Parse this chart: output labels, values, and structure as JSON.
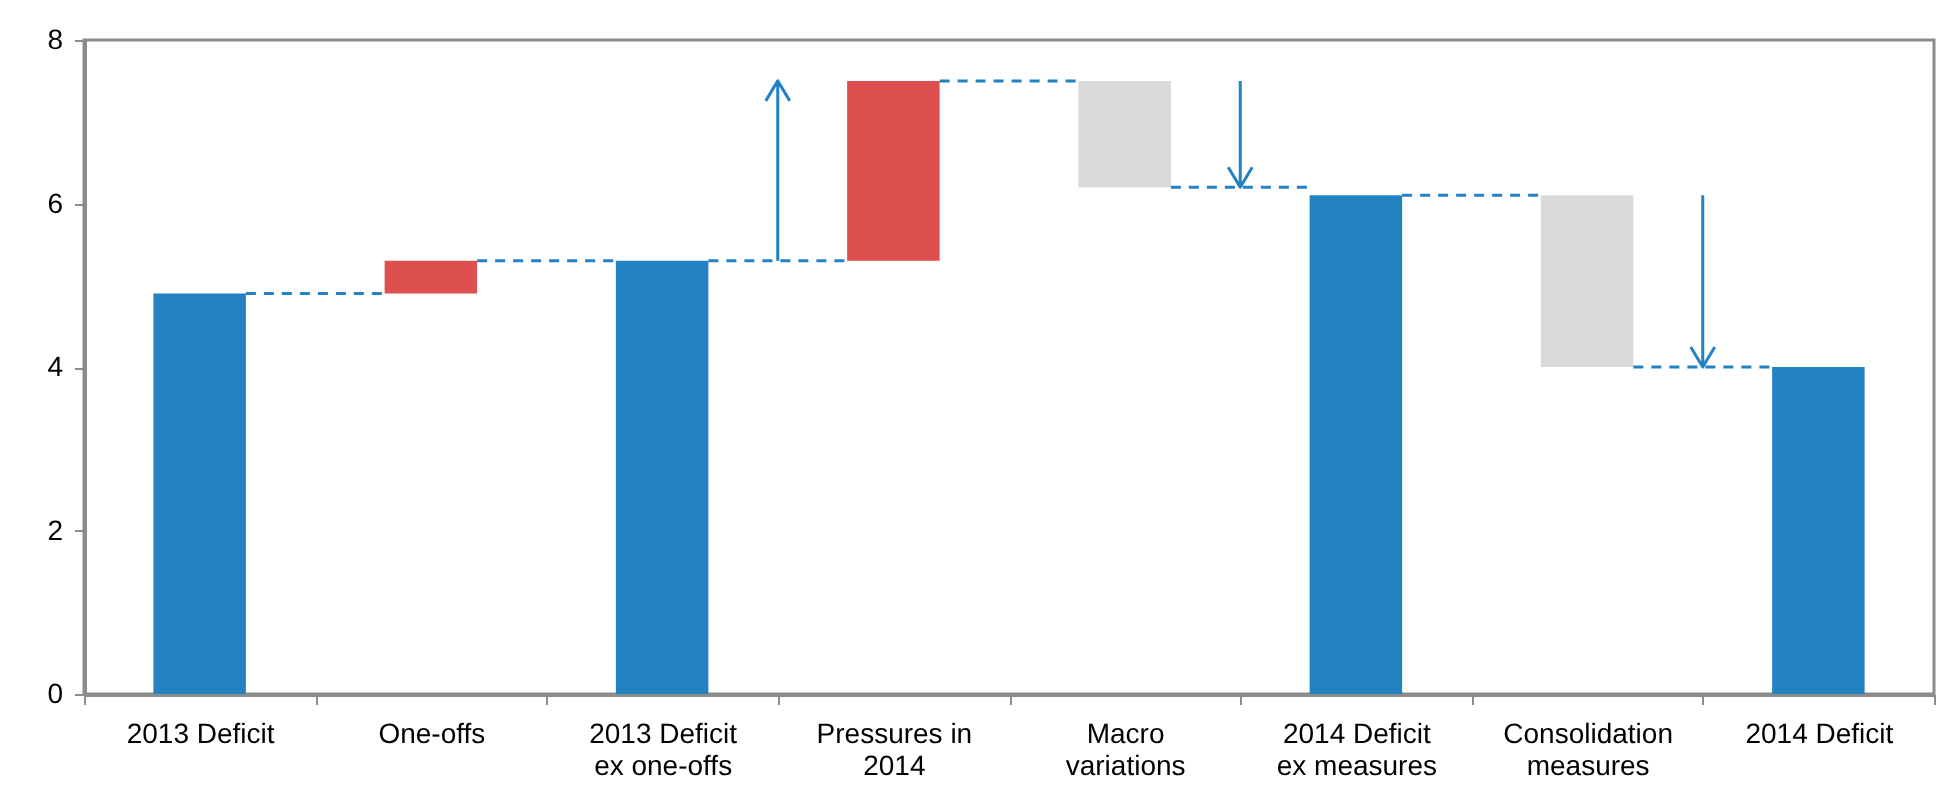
{
  "chart_data": {
    "type": "bar",
    "categories": [
      "2013 Deficit",
      "One-offs",
      "2013 Deficit ex one-offs",
      "Pressures in 2014",
      "Macro variations",
      "2014 Deficit ex measures",
      "Consolidation measures",
      "2014 Deficit"
    ],
    "values": [
      4.9,
      0.4,
      5.3,
      2.2,
      -1.3,
      6.1,
      -2.1,
      4.0
    ],
    "base": [
      0,
      4.9,
      0,
      5.3,
      7.5,
      0,
      6.1,
      0
    ],
    "colors": [
      "#2382c2",
      "#de4f4f",
      "#2382c2",
      "#de4f4f",
      "#d9d9d9",
      "#2382c2",
      "#d9d9d9",
      "#2382c2"
    ],
    "ylim": [
      0,
      8
    ],
    "yticks": [
      0,
      2,
      4,
      6,
      8
    ],
    "grid": false
  }
}
